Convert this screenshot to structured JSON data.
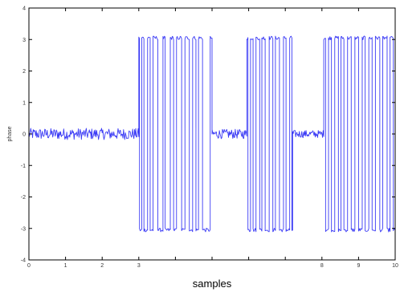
{
  "chart_data": {
    "type": "line",
    "title": "",
    "xlabel": "samples",
    "ylabel": "phase",
    "xlim": [
      0,
      10
    ],
    "ylim": [
      -4,
      4
    ],
    "grid": false,
    "x_ticks": [
      "0",
      "1",
      "2",
      "3",
      "",
      "",
      "",
      "",
      "8",
      "9",
      "10"
    ],
    "y_ticks": [
      "-4",
      "-3",
      "-2",
      "-1",
      "0",
      "1",
      "2",
      "3",
      "4"
    ],
    "colors": {
      "series": "#3b3bf5",
      "axes": "#000000"
    },
    "series": [
      {
        "segments": [
          {
            "type": "noise",
            "x0": 0.0,
            "x1": 3.0,
            "center": 0.0,
            "amp": 0.18
          },
          {
            "type": "wrap",
            "x0": 3.0,
            "x1": 5.0,
            "high": 3.05,
            "low": -3.05,
            "edges": [
              3.02,
              3.08,
              3.14,
              3.24,
              3.31,
              3.39,
              3.52,
              3.66,
              3.72,
              3.86,
              3.95,
              4.03,
              4.17,
              4.26,
              4.38,
              4.47,
              4.56,
              4.63,
              4.74,
              4.95
            ]
          },
          {
            "type": "noise",
            "x0": 5.0,
            "x1": 5.95,
            "center": 0.0,
            "amp": 0.15
          },
          {
            "type": "wrap",
            "x0": 5.95,
            "x1": 7.2,
            "high": 3.05,
            "low": -3.05,
            "edges": [
              5.98,
              6.05,
              6.12,
              6.2,
              6.3,
              6.36,
              6.45,
              6.56,
              6.66,
              6.73,
              6.84,
              6.95,
              7.02,
              7.12,
              7.18
            ]
          },
          {
            "type": "noise",
            "x0": 7.2,
            "x1": 8.05,
            "center": 0.0,
            "amp": 0.12
          },
          {
            "type": "wrap",
            "x0": 8.05,
            "x1": 10.0,
            "high": 3.05,
            "low": -3.05,
            "edges": [
              8.1,
              8.18,
              8.26,
              8.35,
              8.45,
              8.52,
              8.6,
              8.7,
              8.8,
              8.9,
              9.0,
              9.1,
              9.18,
              9.28,
              9.37,
              9.46,
              9.58,
              9.66,
              9.78,
              9.86,
              9.95
            ]
          }
        ]
      }
    ]
  }
}
